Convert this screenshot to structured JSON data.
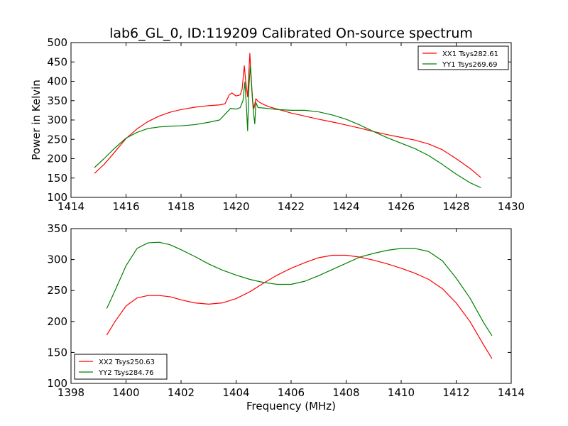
{
  "title": "lab6_GL_0, ID:119209 Calibrated On-source spectrum",
  "chart_data": [
    {
      "type": "line",
      "xlabel": "",
      "ylabel": "Power in Kelvin",
      "xlim": [
        1414,
        1430
      ],
      "ylim": [
        100,
        500
      ],
      "xticks": [
        1414,
        1416,
        1418,
        1420,
        1422,
        1424,
        1426,
        1428,
        1430
      ],
      "yticks": [
        100,
        150,
        200,
        250,
        300,
        350,
        400,
        450,
        500
      ],
      "grid": false,
      "legend_position": "top-right",
      "series": [
        {
          "name": "XX1 Tsys282.61",
          "color": "#ff0000",
          "points": [
            [
              1414.85,
              162
            ],
            [
              1415.2,
              185
            ],
            [
              1415.6,
              218
            ],
            [
              1416.0,
              252
            ],
            [
              1416.4,
              277
            ],
            [
              1416.8,
              296
            ],
            [
              1417.2,
              310
            ],
            [
              1417.6,
              320
            ],
            [
              1418.0,
              327
            ],
            [
              1418.5,
              333
            ],
            [
              1419.0,
              337
            ],
            [
              1419.4,
              339
            ],
            [
              1419.6,
              342
            ],
            [
              1419.75,
              365
            ],
            [
              1419.85,
              370
            ],
            [
              1420.0,
              362
            ],
            [
              1420.15,
              365
            ],
            [
              1420.22,
              380
            ],
            [
              1420.3,
              440
            ],
            [
              1420.35,
              400
            ],
            [
              1420.42,
              360
            ],
            [
              1420.5,
              472
            ],
            [
              1420.55,
              410
            ],
            [
              1420.6,
              350
            ],
            [
              1420.65,
              330
            ],
            [
              1420.72,
              355
            ],
            [
              1420.8,
              348
            ],
            [
              1421.0,
              340
            ],
            [
              1421.2,
              334
            ],
            [
              1421.6,
              326
            ],
            [
              1422.0,
              318
            ],
            [
              1422.5,
              310
            ],
            [
              1423.0,
              302
            ],
            [
              1423.5,
              295
            ],
            [
              1424.0,
              287
            ],
            [
              1424.5,
              279
            ],
            [
              1425.0,
              270
            ],
            [
              1425.5,
              262
            ],
            [
              1426.0,
              255
            ],
            [
              1426.5,
              248
            ],
            [
              1427.0,
              238
            ],
            [
              1427.5,
              223
            ],
            [
              1428.0,
              200
            ],
            [
              1428.5,
              175
            ],
            [
              1428.9,
              151
            ]
          ]
        },
        {
          "name": "YY1 Tsys269.69",
          "color": "#008000",
          "points": [
            [
              1414.85,
              177
            ],
            [
              1415.2,
              200
            ],
            [
              1415.6,
              228
            ],
            [
              1416.0,
              253
            ],
            [
              1416.4,
              268
            ],
            [
              1416.8,
              278
            ],
            [
              1417.2,
              282
            ],
            [
              1417.6,
              284
            ],
            [
              1418.0,
              285
            ],
            [
              1418.5,
              288
            ],
            [
              1419.0,
              294
            ],
            [
              1419.4,
              300
            ],
            [
              1419.6,
              315
            ],
            [
              1419.8,
              330
            ],
            [
              1420.0,
              328
            ],
            [
              1420.15,
              332
            ],
            [
              1420.25,
              350
            ],
            [
              1420.32,
              398
            ],
            [
              1420.38,
              330
            ],
            [
              1420.42,
              272
            ],
            [
              1420.47,
              390
            ],
            [
              1420.52,
              440
            ],
            [
              1420.58,
              370
            ],
            [
              1420.63,
              320
            ],
            [
              1420.68,
              290
            ],
            [
              1420.72,
              345
            ],
            [
              1420.8,
              332
            ],
            [
              1421.0,
              331
            ],
            [
              1421.5,
              327
            ],
            [
              1422.0,
              325
            ],
            [
              1422.5,
              325
            ],
            [
              1423.0,
              321
            ],
            [
              1423.5,
              313
            ],
            [
              1424.0,
              302
            ],
            [
              1424.5,
              287
            ],
            [
              1425.0,
              270
            ],
            [
              1425.5,
              254
            ],
            [
              1426.0,
              240
            ],
            [
              1426.5,
              226
            ],
            [
              1427.0,
              208
            ],
            [
              1427.5,
              185
            ],
            [
              1428.0,
              160
            ],
            [
              1428.5,
              138
            ],
            [
              1428.9,
              125
            ]
          ]
        }
      ]
    },
    {
      "type": "line",
      "xlabel": "Frequency (MHz)",
      "ylabel": "",
      "xlim": [
        1398,
        1414
      ],
      "ylim": [
        100,
        350
      ],
      "xticks": [
        1398,
        1400,
        1402,
        1404,
        1406,
        1408,
        1410,
        1412,
        1414
      ],
      "yticks": [
        100,
        150,
        200,
        250,
        300,
        350
      ],
      "grid": false,
      "legend_position": "bottom-left",
      "series": [
        {
          "name": "XX2 Tsys250.63",
          "color": "#ff0000",
          "points": [
            [
              1399.3,
              178
            ],
            [
              1399.6,
              200
            ],
            [
              1400.0,
              225
            ],
            [
              1400.4,
              238
            ],
            [
              1400.8,
              242
            ],
            [
              1401.2,
              242
            ],
            [
              1401.6,
              240
            ],
            [
              1402.0,
              235
            ],
            [
              1402.5,
              230
            ],
            [
              1403.0,
              228
            ],
            [
              1403.5,
              230
            ],
            [
              1404.0,
              237
            ],
            [
              1404.5,
              248
            ],
            [
              1405.0,
              262
            ],
            [
              1405.5,
              275
            ],
            [
              1406.0,
              286
            ],
            [
              1406.5,
              295
            ],
            [
              1407.0,
              303
            ],
            [
              1407.5,
              307
            ],
            [
              1408.0,
              307
            ],
            [
              1408.5,
              304
            ],
            [
              1409.0,
              299
            ],
            [
              1409.5,
              293
            ],
            [
              1410.0,
              286
            ],
            [
              1410.5,
              278
            ],
            [
              1411.0,
              268
            ],
            [
              1411.5,
              253
            ],
            [
              1412.0,
              230
            ],
            [
              1412.5,
              200
            ],
            [
              1413.0,
              162
            ],
            [
              1413.3,
              140
            ]
          ]
        },
        {
          "name": "YY2 Tsys284.76",
          "color": "#008000",
          "points": [
            [
              1399.3,
              221
            ],
            [
              1399.6,
              250
            ],
            [
              1400.0,
              290
            ],
            [
              1400.4,
              318
            ],
            [
              1400.8,
              327
            ],
            [
              1401.2,
              328
            ],
            [
              1401.6,
              324
            ],
            [
              1402.0,
              316
            ],
            [
              1402.5,
              305
            ],
            [
              1403.0,
              293
            ],
            [
              1403.5,
              283
            ],
            [
              1404.0,
              275
            ],
            [
              1404.5,
              268
            ],
            [
              1405.0,
              263
            ],
            [
              1405.5,
              260
            ],
            [
              1406.0,
              260
            ],
            [
              1406.5,
              265
            ],
            [
              1407.0,
              274
            ],
            [
              1407.5,
              284
            ],
            [
              1408.0,
              294
            ],
            [
              1408.5,
              304
            ],
            [
              1409.0,
              310
            ],
            [
              1409.5,
              315
            ],
            [
              1410.0,
              318
            ],
            [
              1410.5,
              318
            ],
            [
              1411.0,
              313
            ],
            [
              1411.5,
              298
            ],
            [
              1412.0,
              270
            ],
            [
              1412.5,
              238
            ],
            [
              1413.0,
              198
            ],
            [
              1413.3,
              177
            ]
          ]
        }
      ]
    }
  ]
}
